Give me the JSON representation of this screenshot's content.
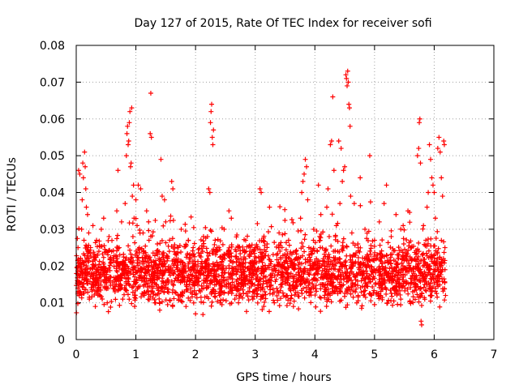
{
  "chart_data": {
    "type": "scatter",
    "title": "Day 127 of 2015, Rate Of TEC Index for receiver sofi",
    "xlabel": "GPS time / hours",
    "ylabel": "ROTI / TECUs",
    "xlim": [
      0,
      7
    ],
    "ylim": [
      0,
      0.08
    ],
    "xticks": [
      "0",
      "1",
      "2",
      "3",
      "4",
      "5",
      "6",
      "7"
    ],
    "yticks": [
      "0",
      "0.01",
      "0.02",
      "0.03",
      "0.04",
      "0.05",
      "0.06",
      "0.07",
      "0.08"
    ],
    "grid": true,
    "marker": "plus",
    "series": [
      {
        "name": "ROTI",
        "color": "#ff0000",
        "points": [
          [
            0.02,
            0.016
          ],
          [
            0.03,
            0.025
          ],
          [
            0.04,
            0.046
          ],
          [
            0.05,
            0.012
          ],
          [
            0.06,
            0.045
          ],
          [
            0.07,
            0.013
          ],
          [
            0.08,
            0.019
          ],
          [
            0.09,
            0.03
          ],
          [
            0.1,
            0.038
          ],
          [
            0.11,
            0.048
          ],
          [
            0.12,
            0.044
          ],
          [
            0.13,
            0.027
          ],
          [
            0.14,
            0.051
          ],
          [
            0.15,
            0.047
          ],
          [
            0.16,
            0.041
          ],
          [
            0.17,
            0.036
          ],
          [
            0.18,
            0.022
          ],
          [
            0.19,
            0.034
          ],
          [
            0.2,
            0.018
          ],
          [
            0.21,
            0.029
          ],
          [
            0.22,
            0.011
          ],
          [
            0.24,
            0.025
          ],
          [
            0.26,
            0.015
          ],
          [
            0.28,
            0.031
          ],
          [
            0.3,
            0.02
          ],
          [
            0.32,
            0.009
          ],
          [
            0.34,
            0.027
          ],
          [
            0.36,
            0.016
          ],
          [
            0.38,
            0.024
          ],
          [
            0.4,
            0.012
          ],
          [
            0.42,
            0.03
          ],
          [
            0.44,
            0.019
          ],
          [
            0.46,
            0.033
          ],
          [
            0.48,
            0.014
          ],
          [
            0.5,
            0.024
          ],
          [
            0.52,
            0.01
          ],
          [
            0.55,
            0.028
          ],
          [
            0.58,
            0.017
          ],
          [
            0.62,
            0.022
          ],
          [
            0.65,
            0.013
          ],
          [
            0.68,
            0.035
          ],
          [
            0.7,
            0.046
          ],
          [
            0.72,
            0.025
          ],
          [
            0.74,
            0.016
          ],
          [
            0.76,
            0.032
          ],
          [
            0.78,
            0.011
          ],
          [
            0.8,
            0.021
          ],
          [
            0.82,
            0.037
          ],
          [
            0.84,
            0.05
          ],
          [
            0.85,
            0.056
          ],
          [
            0.86,
            0.058
          ],
          [
            0.87,
            0.053
          ],
          [
            0.88,
            0.054
          ],
          [
            0.89,
            0.059
          ],
          [
            0.9,
            0.062
          ],
          [
            0.91,
            0.047
          ],
          [
            0.92,
            0.048
          ],
          [
            0.93,
            0.063
          ],
          [
            0.94,
            0.039
          ],
          [
            0.95,
            0.028
          ],
          [
            0.96,
            0.042
          ],
          [
            0.97,
            0.033
          ],
          [
            0.98,
            0.015
          ],
          [
            0.99,
            0.023
          ],
          [
            1.0,
            0.038
          ],
          [
            1.02,
            0.031
          ],
          [
            1.04,
            0.042
          ],
          [
            1.06,
            0.025
          ],
          [
            1.08,
            0.041
          ],
          [
            1.1,
            0.016
          ],
          [
            1.12,
            0.029
          ],
          [
            1.14,
            0.012
          ],
          [
            1.16,
            0.022
          ],
          [
            1.18,
            0.035
          ],
          [
            1.2,
            0.019
          ],
          [
            1.22,
            0.027
          ],
          [
            1.24,
            0.056
          ],
          [
            1.25,
            0.067
          ],
          [
            1.26,
            0.055
          ],
          [
            1.28,
            0.014
          ],
          [
            1.3,
            0.021
          ],
          [
            1.33,
            0.01
          ],
          [
            1.36,
            0.026
          ],
          [
            1.4,
            0.008
          ],
          [
            1.42,
            0.049
          ],
          [
            1.44,
            0.039
          ],
          [
            1.46,
            0.018
          ],
          [
            1.48,
            0.038
          ],
          [
            1.5,
            0.032
          ],
          [
            1.53,
            0.013
          ],
          [
            1.56,
            0.024
          ],
          [
            1.6,
            0.043
          ],
          [
            1.62,
            0.041
          ],
          [
            1.65,
            0.016
          ],
          [
            1.68,
            0.023
          ],
          [
            1.72,
            0.011
          ],
          [
            1.76,
            0.03
          ],
          [
            1.8,
            0.019
          ],
          [
            1.84,
            0.009
          ],
          [
            1.88,
            0.027
          ],
          [
            1.92,
            0.014
          ],
          [
            1.96,
            0.025
          ],
          [
            2.0,
            0.007
          ],
          [
            2.04,
            0.02
          ],
          [
            2.08,
            0.013
          ],
          [
            2.12,
            0.024
          ],
          [
            2.16,
            0.016
          ],
          [
            2.2,
            0.028
          ],
          [
            2.22,
            0.041
          ],
          [
            2.24,
            0.04
          ],
          [
            2.25,
            0.059
          ],
          [
            2.26,
            0.062
          ],
          [
            2.27,
            0.064
          ],
          [
            2.28,
            0.055
          ],
          [
            2.29,
            0.053
          ],
          [
            2.3,
            0.057
          ],
          [
            2.32,
            0.017
          ],
          [
            2.36,
            0.025
          ],
          [
            2.4,
            0.012
          ],
          [
            2.44,
            0.021
          ],
          [
            2.48,
            0.03
          ],
          [
            2.52,
            0.015
          ],
          [
            2.56,
            0.035
          ],
          [
            2.6,
            0.033
          ],
          [
            2.64,
            0.018
          ],
          [
            2.68,
            0.024
          ],
          [
            2.72,
            0.01
          ],
          [
            2.76,
            0.022
          ],
          [
            2.8,
            0.016
          ],
          [
            2.84,
            0.027
          ],
          [
            2.88,
            0.013
          ],
          [
            2.92,
            0.02
          ],
          [
            2.96,
            0.011
          ],
          [
            3.0,
            0.025
          ],
          [
            3.04,
            0.017
          ],
          [
            3.08,
            0.041
          ],
          [
            3.1,
            0.04
          ],
          [
            3.12,
            0.021
          ],
          [
            3.16,
            0.013
          ],
          [
            3.2,
            0.026
          ],
          [
            3.24,
            0.036
          ],
          [
            3.28,
            0.019
          ],
          [
            3.32,
            0.01
          ],
          [
            3.36,
            0.023
          ],
          [
            3.4,
            0.029
          ],
          [
            3.44,
            0.015
          ],
          [
            3.48,
            0.021
          ],
          [
            3.52,
            0.012
          ],
          [
            3.56,
            0.027
          ],
          [
            3.6,
            0.018
          ],
          [
            3.64,
            0.009
          ],
          [
            3.68,
            0.024
          ],
          [
            3.72,
            0.016
          ],
          [
            3.76,
            0.033
          ],
          [
            3.78,
            0.04
          ],
          [
            3.8,
            0.043
          ],
          [
            3.82,
            0.045
          ],
          [
            3.84,
            0.049
          ],
          [
            3.86,
            0.047
          ],
          [
            3.88,
            0.038
          ],
          [
            3.9,
            0.025
          ],
          [
            3.94,
            0.014
          ],
          [
            3.98,
            0.03
          ],
          [
            4.02,
            0.019
          ],
          [
            4.06,
            0.042
          ],
          [
            4.1,
            0.034
          ],
          [
            4.14,
            0.022
          ],
          [
            4.18,
            0.013
          ],
          [
            4.2,
            0.036
          ],
          [
            4.22,
            0.041
          ],
          [
            4.24,
            0.028
          ],
          [
            4.26,
            0.053
          ],
          [
            4.28,
            0.054
          ],
          [
            4.3,
            0.066
          ],
          [
            4.32,
            0.046
          ],
          [
            4.34,
            0.017
          ],
          [
            4.36,
            0.031
          ],
          [
            4.38,
            0.024
          ],
          [
            4.4,
            0.054
          ],
          [
            4.42,
            0.037
          ],
          [
            4.44,
            0.052
          ],
          [
            4.46,
            0.043
          ],
          [
            4.48,
            0.046
          ],
          [
            4.5,
            0.047
          ],
          [
            4.52,
            0.072
          ],
          [
            4.53,
            0.071
          ],
          [
            4.54,
            0.069
          ],
          [
            4.55,
            0.073
          ],
          [
            4.56,
            0.07
          ],
          [
            4.57,
            0.064
          ],
          [
            4.58,
            0.063
          ],
          [
            4.59,
            0.058
          ],
          [
            4.6,
            0.039
          ],
          [
            4.62,
            0.029
          ],
          [
            4.64,
            0.02
          ],
          [
            4.66,
            0.037
          ],
          [
            4.68,
            0.015
          ],
          [
            4.72,
            0.026
          ],
          [
            4.76,
            0.044
          ],
          [
            4.8,
            0.018
          ],
          [
            4.84,
            0.03
          ],
          [
            4.88,
            0.022
          ],
          [
            4.92,
            0.05
          ],
          [
            4.95,
            0.012
          ],
          [
            5.0,
            0.027
          ],
          [
            5.04,
            0.019
          ],
          [
            5.08,
            0.032
          ],
          [
            5.12,
            0.014
          ],
          [
            5.16,
            0.037
          ],
          [
            5.2,
            0.042
          ],
          [
            5.24,
            0.021
          ],
          [
            5.28,
            0.028
          ],
          [
            5.32,
            0.016
          ],
          [
            5.36,
            0.034
          ],
          [
            5.4,
            0.023
          ],
          [
            5.44,
            0.011
          ],
          [
            5.48,
            0.031
          ],
          [
            5.52,
            0.019
          ],
          [
            5.56,
            0.035
          ],
          [
            5.6,
            0.025
          ],
          [
            5.64,
            0.013
          ],
          [
            5.68,
            0.022
          ],
          [
            5.72,
            0.05
          ],
          [
            5.74,
            0.052
          ],
          [
            5.75,
            0.059
          ],
          [
            5.76,
            0.06
          ],
          [
            5.77,
            0.048
          ],
          [
            5.78,
            0.005
          ],
          [
            5.79,
            0.004
          ],
          [
            5.8,
            0.023
          ],
          [
            5.82,
            0.031
          ],
          [
            5.84,
            0.015
          ],
          [
            5.86,
            0.027
          ],
          [
            5.88,
            0.036
          ],
          [
            5.9,
            0.04
          ],
          [
            5.92,
            0.053
          ],
          [
            5.94,
            0.049
          ],
          [
            5.96,
            0.044
          ],
          [
            5.98,
            0.042
          ],
          [
            6.0,
            0.04
          ],
          [
            6.02,
            0.033
          ],
          [
            6.04,
            0.021
          ],
          [
            6.06,
            0.052
          ],
          [
            6.08,
            0.055
          ],
          [
            6.1,
            0.051
          ],
          [
            6.12,
            0.044
          ],
          [
            6.14,
            0.039
          ],
          [
            6.16,
            0.054
          ],
          [
            6.17,
            0.053
          ],
          [
            6.18,
            0.025
          ],
          [
            6.19,
            0.012
          ]
        ],
        "band_min": 0.006,
        "band_max": 0.025
      }
    ]
  }
}
